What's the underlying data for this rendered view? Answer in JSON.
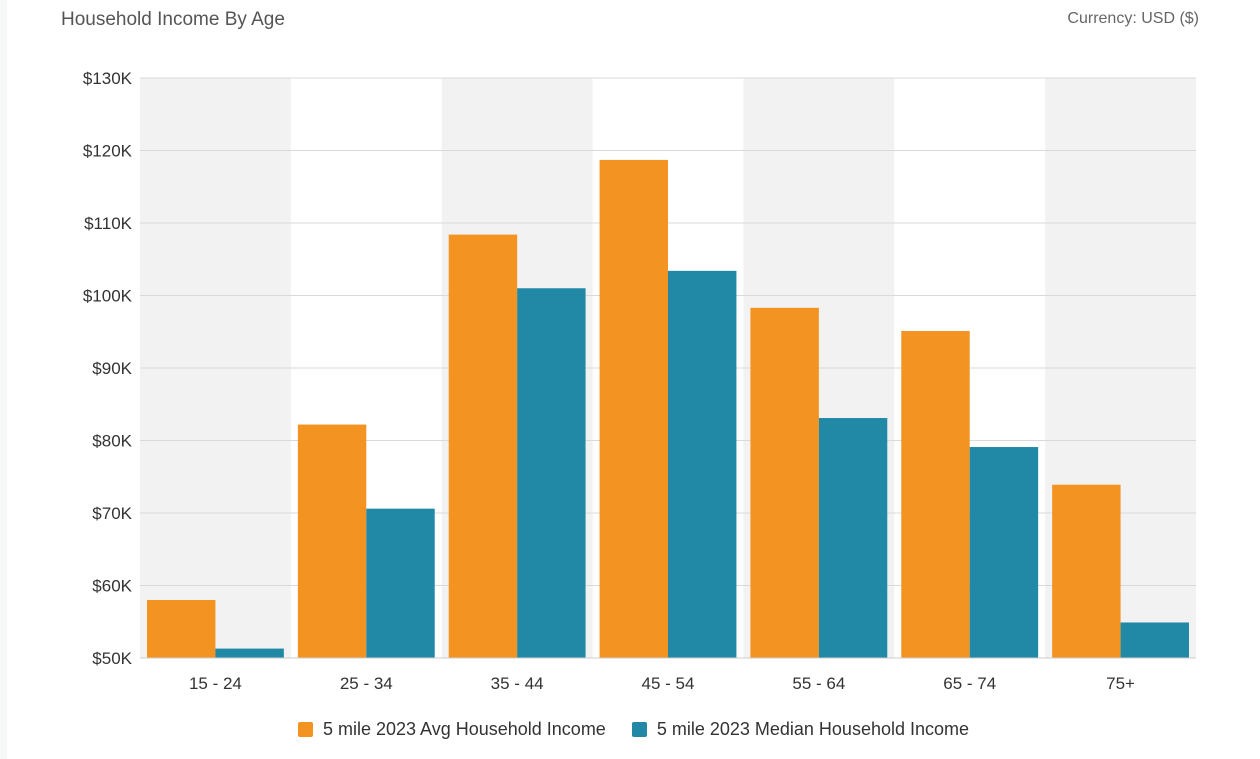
{
  "header": {
    "title": "Household Income By Age",
    "currency": "Currency: USD ($)"
  },
  "colors": {
    "avg": "#f39322",
    "median": "#2189a6",
    "band": "#f2f2f2",
    "grid": "#d9d9d9"
  },
  "chart_data": {
    "type": "bar",
    "title": "Household Income By Age",
    "categories": [
      "15 - 24",
      "25 - 34",
      "35 - 44",
      "45 - 54",
      "55 - 64",
      "65 - 74",
      "75+"
    ],
    "series": [
      {
        "name": "5 mile 2023 Avg Household Income",
        "values": [
          58000,
          82200,
          108400,
          118700,
          98300,
          95100,
          73900
        ]
      },
      {
        "name": "5 mile 2023 Median Household Income",
        "values": [
          51300,
          70600,
          101000,
          103400,
          83100,
          79100,
          54900
        ]
      }
    ],
    "ylim": [
      50000,
      130000
    ],
    "yticks": [
      50000,
      60000,
      70000,
      80000,
      90000,
      100000,
      110000,
      120000,
      130000
    ],
    "ytick_labels": [
      "$50K",
      "$60K",
      "$70K",
      "$80K",
      "$90K",
      "$100K",
      "$110K",
      "$120K",
      "$130K"
    ],
    "grid": true,
    "legend": "bottom-center"
  }
}
